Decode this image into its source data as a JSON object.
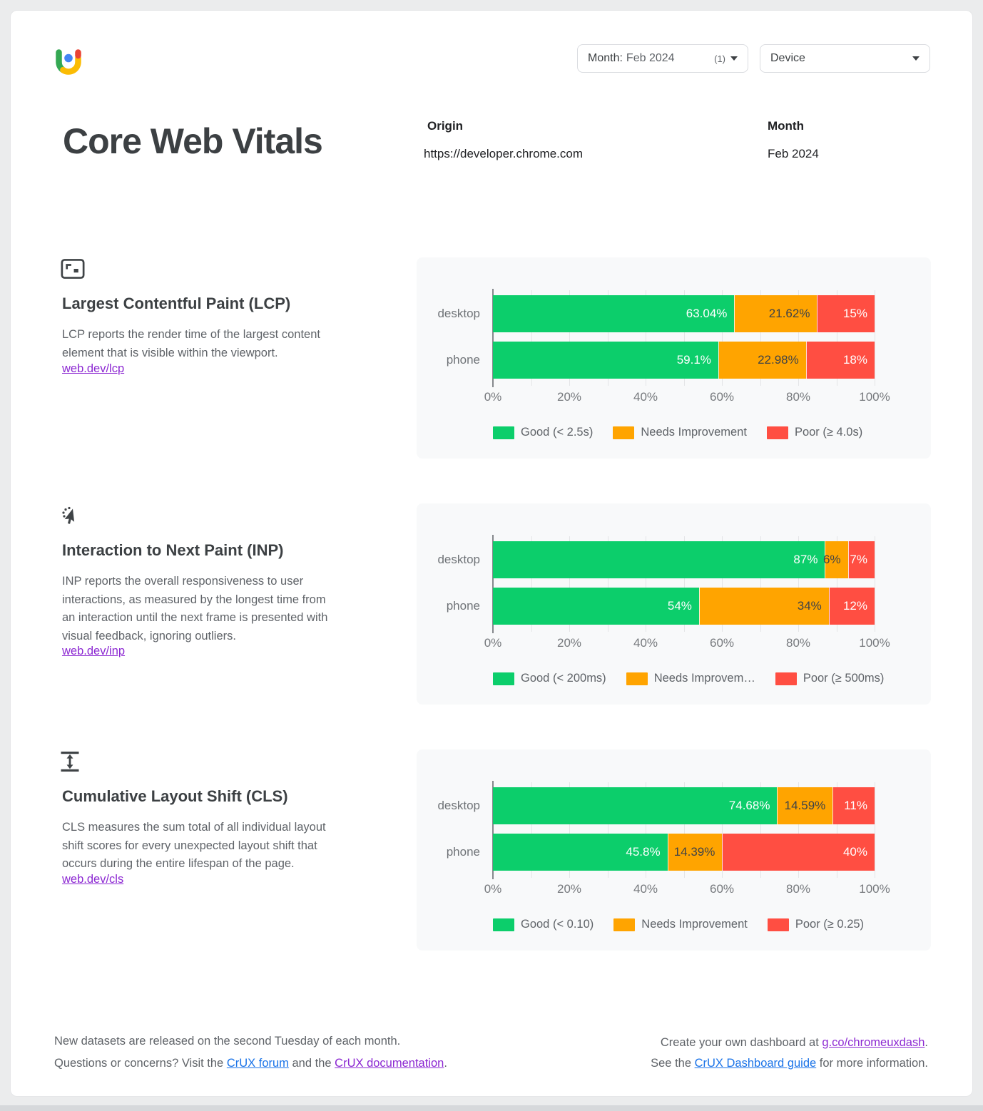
{
  "header": {
    "month_filter": {
      "label": "Month:",
      "value": "Feb 2024",
      "count": "(1)"
    },
    "device_filter": {
      "label": "Device"
    }
  },
  "title": "Core Web Vitals",
  "meta": {
    "origin_label": "Origin",
    "origin_value": "https://developer.chrome.com",
    "month_label": "Month",
    "month_value": "Feb 2024"
  },
  "colors": {
    "good": "#0cce6b",
    "ni": "#ffa400",
    "poor": "#ff4e42"
  },
  "sections": [
    {
      "title": "Largest Contentful Paint (LCP)",
      "description": "LCP reports the render time of the largest content element that is visible within the viewport.",
      "link": "web.dev/lcp"
    },
    {
      "title": "Interaction to Next Paint (INP)",
      "description": "INP reports the overall responsiveness to user interactions, as measured by the longest time from an interaction until the next frame is presented with visual feedback, ignoring outliers.",
      "link": "web.dev/inp"
    },
    {
      "title": "Cumulative Layout Shift (CLS)",
      "description": "CLS measures the sum total of all individual layout shift scores for every unexpected layout shift that occurs during the entire lifespan of the page.",
      "link": "web.dev/cls"
    }
  ],
  "chart_data": [
    {
      "type": "bar",
      "metric": "LCP",
      "categories": [
        "desktop",
        "phone"
      ],
      "series": [
        {
          "name": "Good (< 2.5s)",
          "color_key": "good",
          "values": [
            63.04,
            59.1
          ],
          "labels": [
            "63.04%",
            "59.1%"
          ]
        },
        {
          "name": "Needs Improvement",
          "color_key": "ni",
          "values": [
            21.62,
            22.98
          ],
          "labels": [
            "21.62%",
            "22.98%"
          ]
        },
        {
          "name": "Poor (≥ 4.0s)",
          "color_key": "poor",
          "values": [
            15,
            18
          ],
          "labels": [
            "15%",
            "18%"
          ]
        }
      ],
      "x_ticks": [
        "0%",
        "20%",
        "40%",
        "60%",
        "80%",
        "100%"
      ],
      "xlim": [
        0,
        100
      ],
      "legend": [
        "Good (< 2.5s)",
        "Needs Improvement",
        "Poor (≥ 4.0s)"
      ]
    },
    {
      "type": "bar",
      "metric": "INP",
      "categories": [
        "desktop",
        "phone"
      ],
      "series": [
        {
          "name": "Good (< 200ms)",
          "color_key": "good",
          "values": [
            87,
            54
          ],
          "labels": [
            "87%",
            "54%"
          ]
        },
        {
          "name": "Needs Improvement",
          "color_key": "ni",
          "values": [
            6,
            34
          ],
          "labels": [
            "6%",
            "34%"
          ]
        },
        {
          "name": "Poor (≥ 500ms)",
          "color_key": "poor",
          "values": [
            7,
            12
          ],
          "labels": [
            "7%",
            "12%"
          ]
        }
      ],
      "x_ticks": [
        "0%",
        "20%",
        "40%",
        "60%",
        "80%",
        "100%"
      ],
      "xlim": [
        0,
        100
      ],
      "legend": [
        "Good (< 200ms)",
        "Needs Improvem…",
        "Poor (≥ 500ms)"
      ]
    },
    {
      "type": "bar",
      "metric": "CLS",
      "categories": [
        "desktop",
        "phone"
      ],
      "series": [
        {
          "name": "Good (< 0.10)",
          "color_key": "good",
          "values": [
            74.68,
            45.8
          ],
          "labels": [
            "74.68%",
            "45.8%"
          ]
        },
        {
          "name": "Needs Improvement",
          "color_key": "ni",
          "values": [
            14.59,
            14.39
          ],
          "labels": [
            "14.59%",
            "14.39%"
          ]
        },
        {
          "name": "Poor (≥ 0.25)",
          "color_key": "poor",
          "values": [
            11,
            40
          ],
          "labels": [
            "11%",
            "40%"
          ]
        }
      ],
      "x_ticks": [
        "0%",
        "20%",
        "40%",
        "60%",
        "80%",
        "100%"
      ],
      "xlim": [
        0,
        100
      ],
      "legend": [
        "Good (< 0.10)",
        "Needs Improvement",
        "Poor (≥ 0.25)"
      ]
    }
  ],
  "footer": {
    "left_line1": "New datasets are released on the second Tuesday of each month.",
    "left_line2_a": "Questions or concerns? Visit the ",
    "left_link1": "CrUX forum",
    "left_line2_b": " and the ",
    "left_link2": "CrUX documentation",
    "left_line2_c": ".",
    "right_line1_a": "Create your own dashboard at ",
    "right_link1": "g.co/chromeuxdash",
    "right_line1_b": ".",
    "right_line2_a": "See the ",
    "right_link2": "CrUX Dashboard guide",
    "right_line2_b": " for more information."
  }
}
